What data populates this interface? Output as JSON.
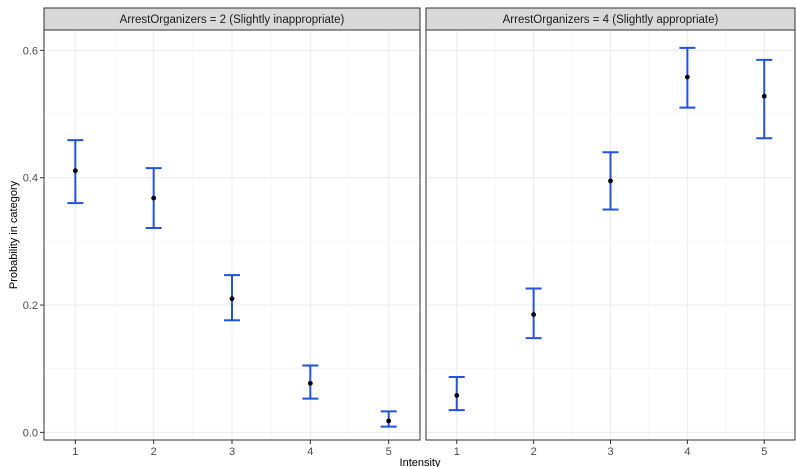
{
  "chart_data": {
    "type": "scatter",
    "style": "point-with-errorbars",
    "xlabel": "Intensity",
    "ylabel": "Probability in category",
    "ylim": [
      -0.012,
      0.632
    ],
    "xlim": [
      0.6,
      5.4
    ],
    "yticks": [
      0.0,
      0.2,
      0.4,
      0.6
    ],
    "ytick_labels": [
      "0.0",
      "0.2",
      "0.4",
      "0.6"
    ],
    "xticks": [
      1,
      2,
      3,
      4,
      5
    ],
    "xtick_labels": [
      "1",
      "2",
      "3",
      "4",
      "5"
    ],
    "grid": true,
    "errorbar_color": "#2451e6",
    "point_color": "#000000",
    "panels": [
      {
        "strip_label": "ArrestOrganizers = 2 (Slightly inappropriate)",
        "points": [
          {
            "x": 1,
            "y": 0.411,
            "lower": 0.36,
            "upper": 0.459
          },
          {
            "x": 2,
            "y": 0.368,
            "lower": 0.321,
            "upper": 0.415
          },
          {
            "x": 3,
            "y": 0.21,
            "lower": 0.176,
            "upper": 0.247
          },
          {
            "x": 4,
            "y": 0.077,
            "lower": 0.053,
            "upper": 0.105
          },
          {
            "x": 5,
            "y": 0.018,
            "lower": 0.009,
            "upper": 0.033
          }
        ]
      },
      {
        "strip_label": "ArrestOrganizers = 4 (Slightly appropriate)",
        "points": [
          {
            "x": 1,
            "y": 0.058,
            "lower": 0.035,
            "upper": 0.087
          },
          {
            "x": 2,
            "y": 0.185,
            "lower": 0.148,
            "upper": 0.226
          },
          {
            "x": 3,
            "y": 0.395,
            "lower": 0.35,
            "upper": 0.44
          },
          {
            "x": 4,
            "y": 0.558,
            "lower": 0.51,
            "upper": 0.604
          },
          {
            "x": 5,
            "y": 0.528,
            "lower": 0.462,
            "upper": 0.585
          }
        ]
      }
    ]
  }
}
